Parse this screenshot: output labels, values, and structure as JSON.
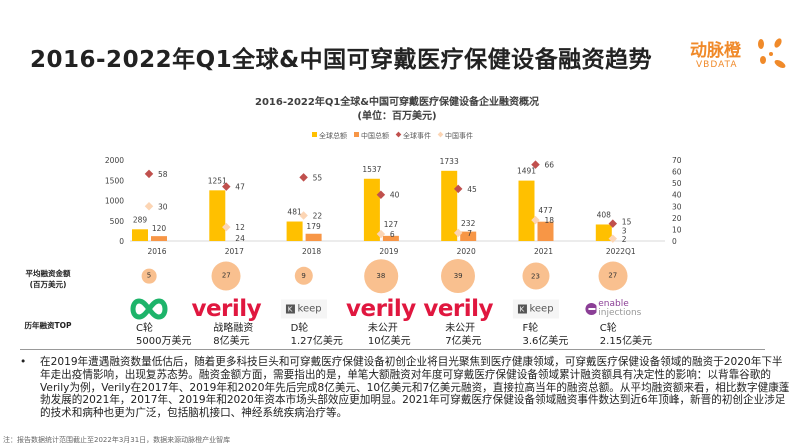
{
  "page_title": "2016-2022年Q1全球&中国可穿戴医疗保健设备融资趋势",
  "brand": {
    "cn": "动脉橙",
    "en": "VBDATA",
    "color": "#f08a2a"
  },
  "chart_data": {
    "type": "bar",
    "title": "2016-2022年Q1全球&中国可穿戴医疗保健设备企业融资概况",
    "subtitle": "(单位：百万美元)",
    "categories": [
      "2016",
      "2017",
      "2018",
      "2019",
      "2020",
      "2021",
      "2022Q1"
    ],
    "series": [
      {
        "name": "全球总额",
        "kind": "bar",
        "axis": "left",
        "color": "#ffc000",
        "values": [
          289,
          1251,
          481,
          1537,
          1733,
          1491,
          408
        ]
      },
      {
        "name": "中国总额",
        "kind": "bar",
        "axis": "left",
        "color": "#f79646",
        "values": [
          120,
          null,
          179,
          127,
          232,
          477,
          null
        ]
      },
      {
        "name": "全球事件",
        "kind": "scatter",
        "axis": "right",
        "color": "#c0504d",
        "values": [
          58,
          47,
          55,
          40,
          45,
          66,
          15
        ]
      },
      {
        "name": "中国事件",
        "kind": "scatter",
        "axis": "right",
        "color": "#fcd5b4",
        "values": [
          30,
          12,
          22,
          6,
          7,
          18,
          2
        ]
      }
    ],
    "extra_labels": [
      {
        "category": "2017",
        "text": "24"
      },
      {
        "category": "2022Q1",
        "text": "3"
      }
    ],
    "left_axis": {
      "ylim": [
        0,
        2000
      ],
      "ticks": [
        "0",
        "500",
        "1000",
        "1500",
        "2000"
      ]
    },
    "right_axis": {
      "ylim": [
        0,
        70
      ],
      "ticks": [
        "0",
        "10",
        "20",
        "30",
        "40",
        "50",
        "60",
        "70"
      ]
    },
    "legend": "top",
    "grid": false
  },
  "avg_row": {
    "label_line1": "平均融资金额",
    "label_line2": "(百万美元)",
    "values": [
      5,
      27,
      9,
      38,
      39,
      23,
      27
    ]
  },
  "top_row": {
    "label": "历年融资TOP",
    "items": [
      {
        "logo": "infinity-logo",
        "round": "C轮",
        "amount": "5000万美元"
      },
      {
        "logo": "verily",
        "round": "战略融资",
        "amount": "8亿美元"
      },
      {
        "logo": "keep",
        "round": "D轮",
        "amount": "1.27亿美元"
      },
      {
        "logo": "verily",
        "round": "未公开",
        "amount": "10亿美元"
      },
      {
        "logo": "verily",
        "round": "未公开",
        "amount": "7亿美元"
      },
      {
        "logo": "keep",
        "round": "F轮",
        "amount": "3.6亿美元"
      },
      {
        "logo": "enable injections",
        "round": "C轮",
        "amount": "2.15亿美元"
      }
    ],
    "logo_text": {
      "verily": "verily",
      "keep": "keep",
      "k": "K",
      "enable1": "enable",
      "enable2": "injections"
    }
  },
  "paragraph": "在2019年遭遇融资数量低估后，随着更多科技巨头和可穿戴医疗保健设备初创企业将目光聚焦到医疗健康领域，可穿戴医疗保健设备领域的融资于2020年下半年走出疫情影响，出现复苏态势。融资金额方面，需要指出的是，单笔大额融资对年度可穿戴医疗保健设备领域累计融资额具有决定性的影响：以背靠谷歌的Verily为例，Verily在2017年、2019年和2020年先后完成8亿美元、10亿美元和7亿美元融资，直接拉高当年的融资总额。从平均融资额来看，相比数字健康蓬勃发展的2021年，2017年、2019年和2020年资本市场头部效应更加明显。2021年可穿戴医疗保健设备领域融资事件数达到近6年顶峰，新晋的初创企业涉足的技术和病种也更为广泛，包括脑机接口、神经系统疾病治疗等。",
  "bullet": "•",
  "note": "注：报告数据统计范围截止至2022年3月31日，数据来源动脉橙产业智库"
}
